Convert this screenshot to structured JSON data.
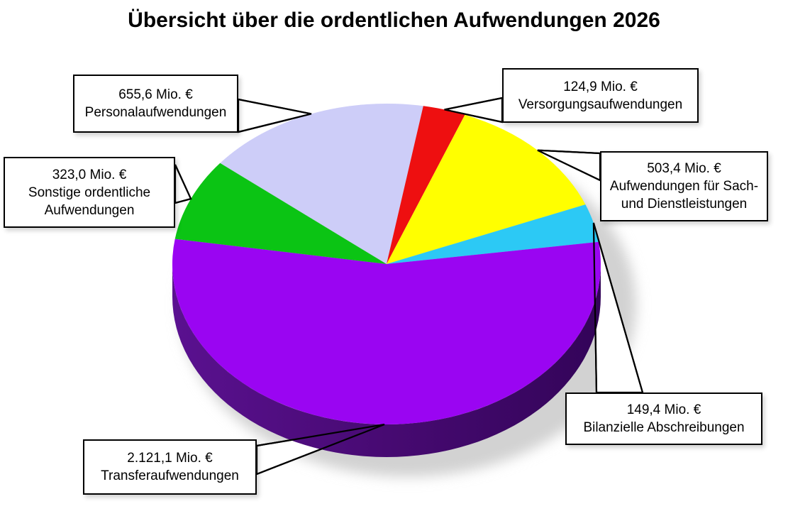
{
  "title": "Übersicht über die ordentlichen Aufwendungen 2026",
  "chart_data": {
    "type": "pie",
    "title": "Übersicht über die ordentlichen Aufwendungen 2026",
    "unit": "Mio. €",
    "style": "3d",
    "start_angle_deg": -51,
    "legend_position": "callout-labels",
    "slices": [
      {
        "label": "Personalaufwendungen",
        "value": 655.6,
        "display": "655,6 Mio. €",
        "color": "#cdcdf8"
      },
      {
        "label": "Versorgungsaufwendungen",
        "value": 124.9,
        "display": "124,9 Mio. €",
        "color": "#ee0f10"
      },
      {
        "label": "Aufwendungen für Sach- und Dienstleistungen",
        "value": 503.4,
        "display": "503,4 Mio. €",
        "color": "#ffff00"
      },
      {
        "label": "Bilanzielle Abschreibungen",
        "value": 149.4,
        "display": "149,4 Mio. €",
        "color": "#2cc9f5"
      },
      {
        "label": "Transferaufwendungen",
        "value": 2121.1,
        "display": "2.121,1 Mio. €",
        "color": "#9a05f2"
      },
      {
        "label": "Sonstige ordentliche Aufwendungen",
        "value": 323.0,
        "display": "323,0 Mio. €",
        "color": "#0bc414"
      }
    ],
    "rim_colors": [
      "#5a1190",
      "#470a72",
      "#330459"
    ],
    "shadow_color": "#d2d2d2"
  },
  "callouts": [
    {
      "value": "655,6 Mio. €",
      "label": "Personalaufwendungen"
    },
    {
      "value": "124,9 Mio. €",
      "label": "Versorgungsaufwendungen"
    },
    {
      "value": "503,4 Mio. €",
      "label": "Aufwendungen für Sach- und Dienstleistungen"
    },
    {
      "value": "149,4 Mio. €",
      "label": "Bilanzielle Abschreibungen"
    },
    {
      "value": "2.121,1 Mio. €",
      "label": "Transferaufwendungen"
    },
    {
      "value": "323,0 Mio. €",
      "label": "Sonstige ordentliche Aufwendungen"
    }
  ]
}
